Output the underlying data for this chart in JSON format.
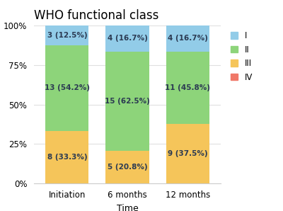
{
  "title": "WHO functional class",
  "xlabel": "Time",
  "ylabel": "",
  "categories": [
    "Initiation",
    "6 months",
    "12 months"
  ],
  "segments": {
    "IV": [
      0,
      0,
      0
    ],
    "III": [
      33.3,
      20.8,
      37.5
    ],
    "II": [
      54.2,
      62.5,
      45.8
    ],
    "I": [
      12.5,
      16.7,
      16.7
    ]
  },
  "labels": {
    "III": [
      "8 (33.3%)",
      "5 (20.8%)",
      "9 (37.5%)"
    ],
    "II": [
      "13 (54.2%)",
      "15 (62.5%)",
      "11 (45.8%)"
    ],
    "I": [
      "3 (12.5%)",
      "4 (16.7%)",
      "4 (16.7%)"
    ]
  },
  "colors": {
    "I": "#92cce8",
    "II": "#8dd47a",
    "III": "#f5c55a",
    "IV": "#f07868"
  },
  "legend_order": [
    "I",
    "II",
    "III",
    "IV"
  ],
  "ylim": [
    0,
    100
  ],
  "yticks": [
    0,
    25,
    50,
    75,
    100
  ],
  "ytick_labels": [
    "0%",
    "25%",
    "50%",
    "75%",
    "100%"
  ],
  "bar_width": 0.72,
  "title_fontsize": 12,
  "label_fontsize": 7.5,
  "tick_fontsize": 8.5,
  "legend_fontsize": 8.5,
  "xlabel_fontsize": 9,
  "background_color": "#ffffff",
  "grid_color": "#e0e0e0",
  "text_color": "#2b3a52"
}
